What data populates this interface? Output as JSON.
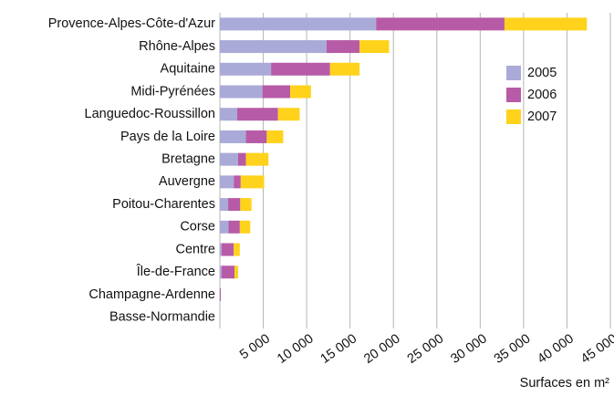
{
  "chart_data": {
    "type": "stacked-bar-horizontal",
    "categories": [
      "Provence-Alpes-Côte-d'Azur",
      "Rhône-Alpes",
      "Aquitaine",
      "Midi-Pyrénées",
      "Languedoc-Roussillon",
      "Pays de la Loire",
      "Bretagne",
      "Auvergne",
      "Poitou-Charentes",
      "Corse",
      "Centre",
      "Île-de-France",
      "Champagne-Ardenne",
      "Basse-Normandie"
    ],
    "series": [
      {
        "name": "2005",
        "color": "#aaaad8",
        "values": [
          18000,
          12300,
          5900,
          4900,
          2000,
          3000,
          2100,
          1600,
          950,
          1000,
          200,
          200,
          0,
          50
        ]
      },
      {
        "name": "2006",
        "color": "#b75ba6",
        "values": [
          14800,
          3800,
          6800,
          3200,
          4700,
          2400,
          900,
          800,
          1400,
          1300,
          1400,
          1500,
          100,
          0
        ]
      },
      {
        "name": "2007",
        "color": "#ffd21c",
        "values": [
          9500,
          3400,
          3400,
          2400,
          2500,
          1900,
          2600,
          2700,
          1300,
          1200,
          700,
          400,
          0,
          0
        ]
      }
    ],
    "xlabel": "Surfaces en m²",
    "xlim": [
      0,
      45000
    ],
    "xticks": [
      {
        "value": 5000,
        "label": "5 000"
      },
      {
        "value": 10000,
        "label": "10 000"
      },
      {
        "value": 15000,
        "label": "15 000"
      },
      {
        "value": 20000,
        "label": "20 000"
      },
      {
        "value": 25000,
        "label": "25 000"
      },
      {
        "value": 30000,
        "label": "30 000"
      },
      {
        "value": 35000,
        "label": "35 000"
      },
      {
        "value": 40000,
        "label": "40 000"
      },
      {
        "value": 45000,
        "label": "45 000"
      }
    ],
    "grid": true,
    "legend": "right"
  }
}
